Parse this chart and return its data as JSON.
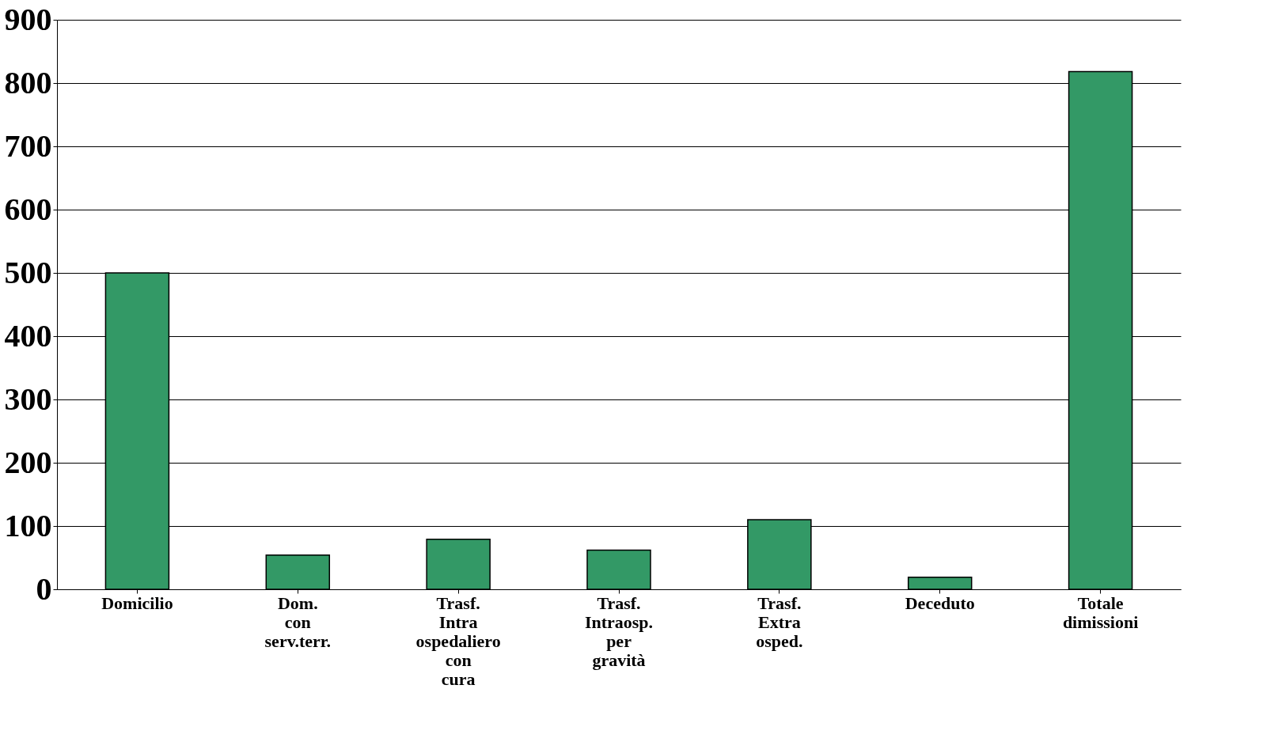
{
  "chart_data": {
    "type": "bar",
    "categories": [
      "Domicilio",
      "Dom. con serv.terr.",
      "Trasf. Intra ospedaliero con cura",
      "Trasf. Intraosp. per gravità",
      "Trasf. Extra osped.",
      "Deceduto",
      "Totale dimissioni"
    ],
    "values": [
      500,
      54,
      79,
      62,
      110,
      19,
      818
    ],
    "color": "#339966",
    "ylim": [
      0,
      900
    ],
    "yticks": [
      0,
      100,
      200,
      300,
      400,
      500,
      600,
      700,
      800,
      900
    ],
    "grid": "y"
  }
}
